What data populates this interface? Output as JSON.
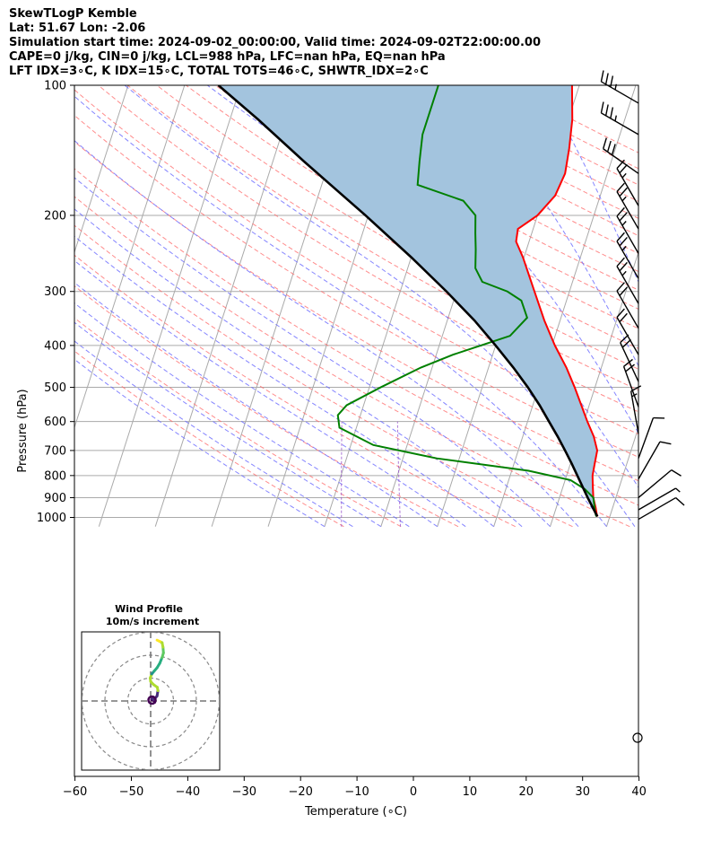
{
  "header": {
    "line1": "SkewTLogP Kemble",
    "line2": "Lat: 51.67   Lon: -2.06",
    "line3": "Simulation start time: 2024-09-02_00:00:00, Valid time: 2024-09-02T22:00:00.00",
    "line4": "CAPE=0 j/kg, CIN=0 j/kg, LCL=988 hPa, LFC=nan hPa, EQ=nan hPa",
    "line5": "LFT IDX=3∘C, K IDX=15∘C, TOTAL TOTS=46∘C, SHWTR_IDX=2∘C"
  },
  "colors": {
    "temperature": "#ff0000",
    "dewpoint": "#008000",
    "parcel": "#000000",
    "cape_fill": "#a3c4de",
    "dry_adiabat": "#ff6666",
    "moist_adiabat": "#6666ff",
    "mixing_ratio": "#9955cc",
    "isotherm": "#aaaaaa",
    "isobar": "#aaaaaa"
  },
  "chart_data": {
    "type": "line",
    "title": "",
    "xlabel": "Temperature (∘C)",
    "ylabel": "Pressure (hPa)",
    "xlim": [
      -60,
      40
    ],
    "ylim": [
      1050,
      100
    ],
    "y_scale": "log",
    "x_ticks": [
      "−60",
      "−50",
      "−40",
      "−30",
      "−20",
      "−10",
      "0",
      "10",
      "20",
      "30",
      "40"
    ],
    "y_ticks": [
      "100",
      "200",
      "300",
      "400",
      "500",
      "600",
      "700",
      "800",
      "900",
      "1000"
    ],
    "grid": true,
    "series": [
      {
        "name": "temperature",
        "pressure": [
          995,
          980,
          950,
          900,
          850,
          800,
          750,
          700,
          650,
          600,
          550,
          500,
          450,
          400,
          350,
          300,
          250,
          230,
          215,
          200,
          180,
          160,
          140,
          120,
          100
        ],
        "temp": [
          17.8,
          17.5,
          17.0,
          16.0,
          15.3,
          14.6,
          14.3,
          14.0,
          12.6,
          10.6,
          8.6,
          6.4,
          3.8,
          0.5,
          -2.8,
          -6.2,
          -10.2,
          -12.3,
          -12.7,
          -10.0,
          -8.0,
          -7.5,
          -8.2,
          -9.3,
          -11.3
        ]
      },
      {
        "name": "dewpoint",
        "pressure": [
          995,
          980,
          950,
          900,
          860,
          820,
          780,
          730,
          680,
          620,
          580,
          550,
          500,
          450,
          420,
          380,
          345,
          315,
          300,
          285,
          265,
          240,
          220,
          200,
          185,
          170,
          150,
          130,
          115,
          100
        ],
        "temp": [
          17.6,
          17.3,
          16.8,
          16.0,
          14.0,
          11.0,
          3.0,
          -14.0,
          -26.0,
          -33.0,
          -34.0,
          -33.0,
          -28.0,
          -22.0,
          -17.0,
          -8.0,
          -6.0,
          -8.0,
          -11.0,
          -16.0,
          -18.0,
          -19.0,
          -20.0,
          -21.0,
          -24.0,
          -33.0,
          -34.0,
          -35.0,
          -35.0,
          -35.0
        ]
      },
      {
        "name": "parcel",
        "pressure": [
          995,
          988,
          950,
          900,
          850,
          800,
          750,
          700,
          650,
          600,
          550,
          500,
          450,
          400,
          350,
          300,
          250,
          200,
          150,
          120,
          100
        ],
        "temp": [
          17.8,
          17.6,
          16.5,
          15.0,
          13.5,
          11.9,
          10.2,
          8.3,
          6.2,
          3.8,
          1.2,
          -1.9,
          -5.6,
          -10.0,
          -15.2,
          -21.8,
          -30.0,
          -40.5,
          -54.5,
          -65.0,
          -74.0
        ]
      }
    ],
    "winds": [
      {
        "pressure": 110,
        "speed_kt": 35,
        "direction": 300
      },
      {
        "pressure": 130,
        "speed_kt": 35,
        "direction": 300
      },
      {
        "pressure": 160,
        "speed_kt": 30,
        "direction": 305
      },
      {
        "pressure": 190,
        "speed_kt": 25,
        "direction": 330
      },
      {
        "pressure": 215,
        "speed_kt": 25,
        "direction": 330
      },
      {
        "pressure": 245,
        "speed_kt": 25,
        "direction": 330
      },
      {
        "pressure": 280,
        "speed_kt": 25,
        "direction": 330
      },
      {
        "pressure": 320,
        "speed_kt": 25,
        "direction": 330
      },
      {
        "pressure": 365,
        "speed_kt": 20,
        "direction": 330
      },
      {
        "pressure": 420,
        "speed_kt": 20,
        "direction": 330
      },
      {
        "pressure": 485,
        "speed_kt": 20,
        "direction": 335
      },
      {
        "pressure": 555,
        "speed_kt": 20,
        "direction": 340
      },
      {
        "pressure": 640,
        "speed_kt": 15,
        "direction": 350
      },
      {
        "pressure": 730,
        "speed_kt": 10,
        "direction": 20
      },
      {
        "pressure": 815,
        "speed_kt": 10,
        "direction": 30
      },
      {
        "pressure": 900,
        "speed_kt": 10,
        "direction": 50
      },
      {
        "pressure": 960,
        "speed_kt": 5,
        "direction": 60
      },
      {
        "pressure": 1010,
        "speed_kt": 10,
        "direction": 60
      }
    ],
    "hodograph": {
      "title_line1": "Wind Profile",
      "title_line2": "10m/s increment",
      "u": [
        1.8,
        1.4,
        0.4,
        0.6,
        1.5,
        2.8,
        3.2,
        2.9,
        1.2,
        0.0,
        -0.2,
        0.5,
        1.5,
        2.8,
        4.0,
        5.0,
        5.6,
        5.4,
        5.0,
        4.0,
        2.8
      ],
      "v": [
        -0.6,
        0.3,
        0.5,
        1.0,
        0.6,
        2.2,
        4.5,
        6.0,
        7.2,
        8.5,
        10.0,
        11.8,
        13.0,
        14.5,
        16.5,
        19.0,
        21.0,
        23.5,
        25.5,
        26.0,
        26.6
      ]
    }
  }
}
